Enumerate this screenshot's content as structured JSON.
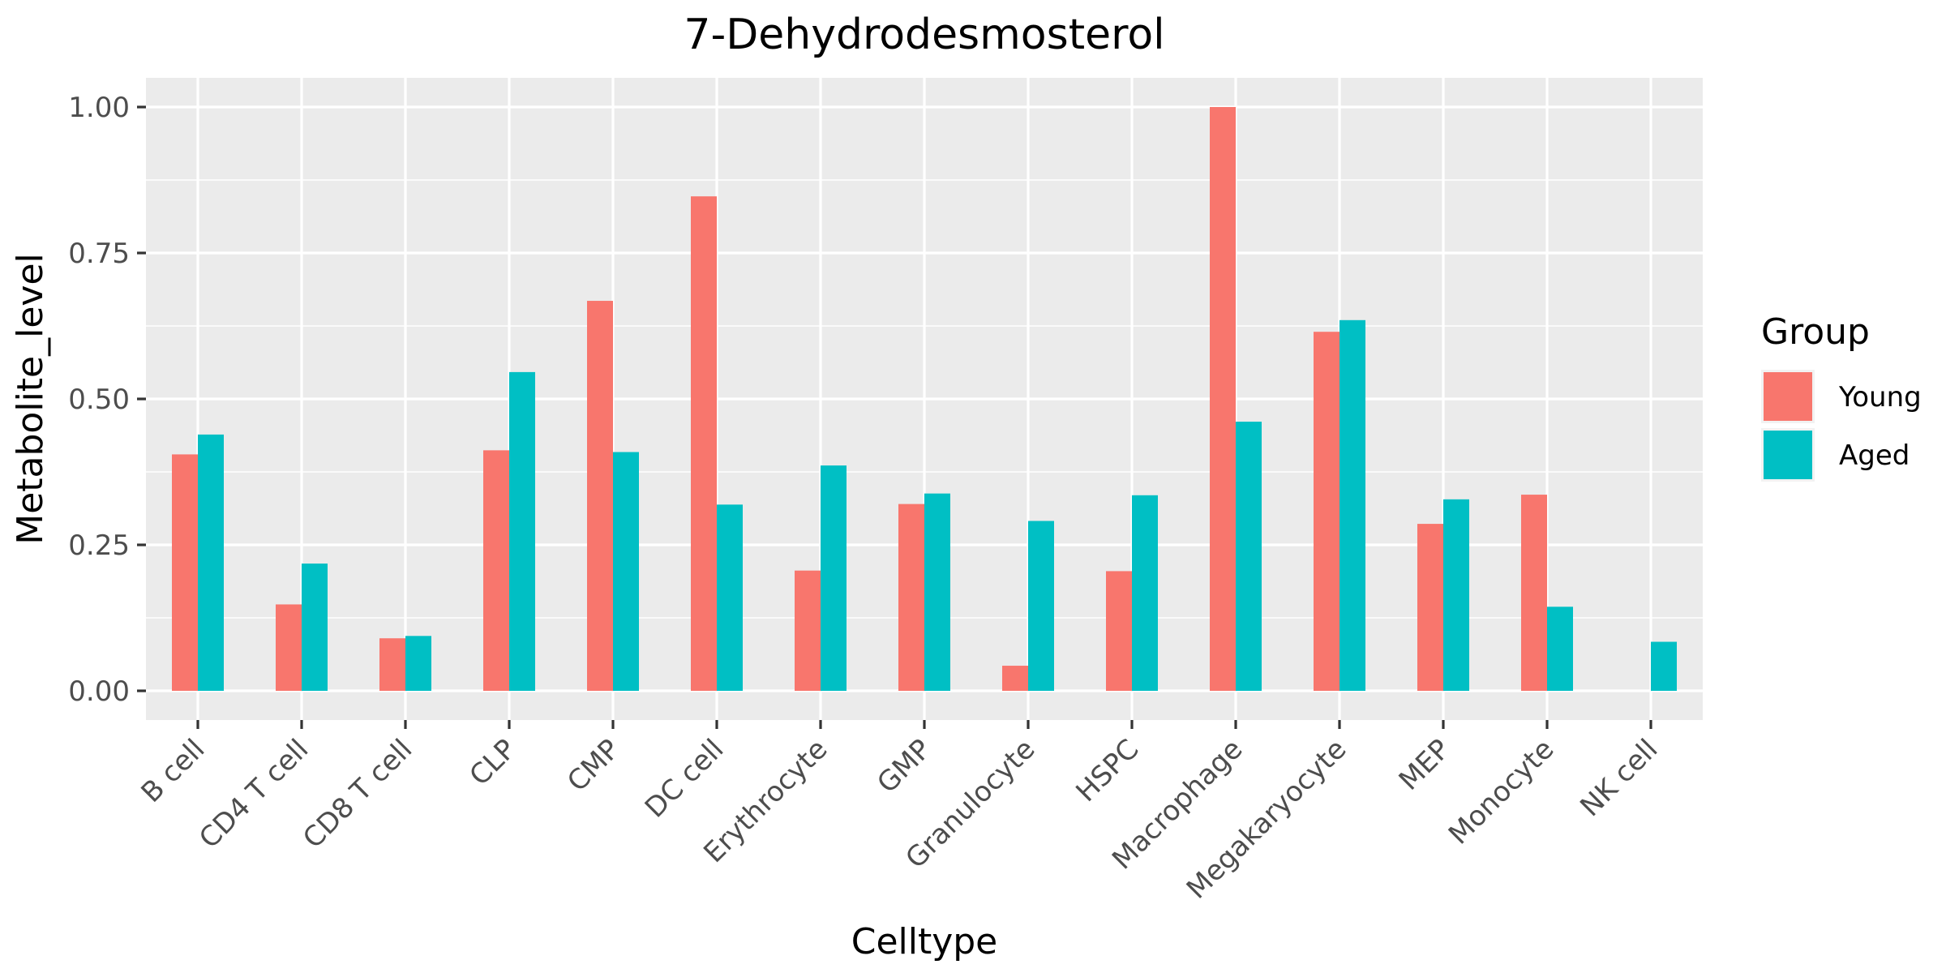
{
  "chart_data": {
    "type": "bar",
    "title": "7-Dehydrodesmosterol",
    "xlabel": "Celltype",
    "ylabel": "Metabolite_level",
    "ylim": [
      -0.05,
      1.05
    ],
    "yticks": [
      0.0,
      0.25,
      0.5,
      0.75,
      1.0
    ],
    "ytick_labels": [
      "0.00",
      "0.25",
      "0.50",
      "0.75",
      "1.00"
    ],
    "categories": [
      "B cell",
      "CD4 T cell",
      "CD8 T cell",
      "CLP",
      "CMP",
      "DC cell",
      "Erythrocyte",
      "GMP",
      "Granulocyte",
      "HSPC",
      "Macrophage",
      "Megakaryocyte",
      "MEP",
      "Monocyte",
      "NK cell"
    ],
    "series": [
      {
        "name": "Young",
        "color": "#F8766D",
        "values": [
          0.405,
          0.148,
          0.09,
          0.412,
          0.668,
          0.847,
          0.206,
          0.32,
          0.043,
          0.205,
          1.0,
          0.615,
          0.286,
          0.336,
          0.0
        ]
      },
      {
        "name": "Aged",
        "color": "#00BFC4",
        "values": [
          0.439,
          0.218,
          0.094,
          0.546,
          0.409,
          0.319,
          0.386,
          0.338,
          0.291,
          0.335,
          0.461,
          0.635,
          0.328,
          0.144,
          0.084
        ]
      }
    ],
    "legend": {
      "title": "Group",
      "position": "right"
    },
    "grid": true,
    "panel_background": "#EBEBEB"
  }
}
